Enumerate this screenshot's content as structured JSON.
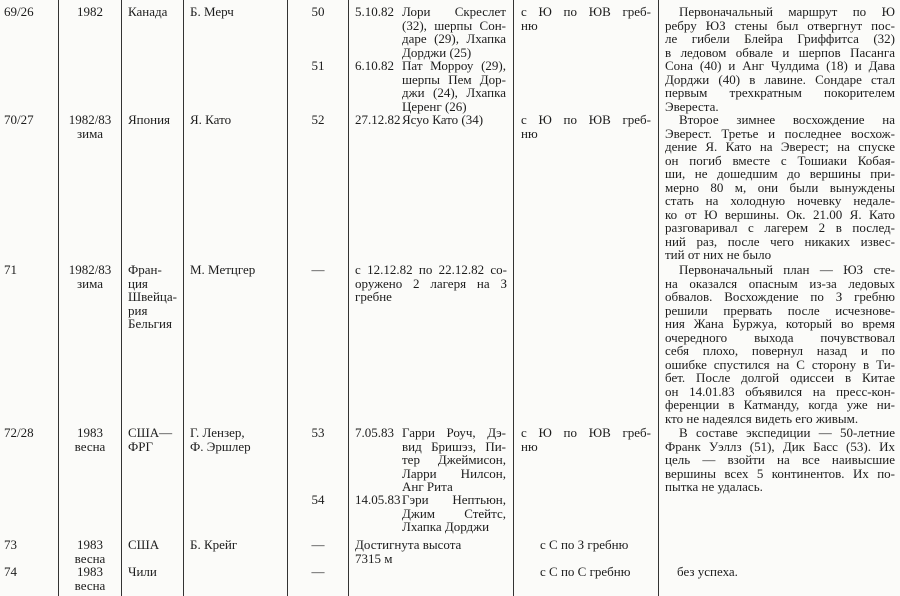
{
  "rows": [
    {
      "num": "69/26",
      "year": [
        "1982"
      ],
      "country": [
        "Канада"
      ],
      "leader": [
        "Б. Мерч"
      ],
      "ascents": [
        {
          "no": "50",
          "date": "5.10.82",
          "names": [
            "Лори Скреслет",
            "(32), шерпы Сон-",
            "даре (29), Лхапка",
            "Дорджи (25)"
          ]
        },
        {
          "no": "51",
          "date": "6.10.82",
          "names": [
            "Пат Морроу (29),",
            "шерпы Пем Дор-",
            "джи (24), Лхапка",
            "Церенг (26)"
          ]
        }
      ],
      "route": [
        "с Ю по ЮВ греб-",
        "ню"
      ],
      "notes": [
        "Первоначальный маршрут по Ю",
        "ребру ЮЗ стены был отвергнут пос-",
        "ле гибели Блейра Гриффитса (32)",
        "в ледовом обвале и шерпов Пасанга",
        "Сона (40) и Анг Чулдима (18) и Дава",
        "Дорджи (40) в лавине. Сондаре стал",
        "первым трехкратным покорителем",
        "Эвереста."
      ]
    },
    {
      "num": "70/27",
      "year": [
        "1982/83",
        "зима"
      ],
      "country": [
        "Япония"
      ],
      "leader": [
        "Я. Като"
      ],
      "ascents": [
        {
          "no": "52",
          "date": "27.12.82",
          "names": [
            "Ясуо Като (34)"
          ]
        }
      ],
      "route": [
        "с Ю по ЮВ греб-",
        "ню"
      ],
      "notes": [
        "Второе зимнее восхождение на",
        "Эверест. Третье и последнее восхож-",
        "дение Я. Като на Эверест; на спуске",
        "он погиб вместе с Тошиаки Кобая-",
        "ши, не дошедшим до вершины при-",
        "мерно 80 м, они были вынуждены",
        "стать на холодную ночевку недале-",
        "ко от Ю вершины. Ок. 21.00 Я. Като",
        "разговаривал с лагерем 2 в послед-",
        "ний раз, после чего никаких извес-",
        "тий от них не было"
      ]
    },
    {
      "num": "71",
      "year": [
        "1982/83",
        "зима"
      ],
      "country": [
        "Фран-",
        "ция",
        "Швейца-",
        "рия",
        "Бельгия"
      ],
      "leader": [
        "М. Метцгер"
      ],
      "no": "—",
      "text": [
        "с 12.12.82 по 22.12.82 со-",
        "оружено 2 лагеря на З",
        "гребне"
      ],
      "route": [],
      "notes": [
        "Первоначальный план — ЮЗ сте-",
        "на оказался опасным из-за ледовых",
        "обвалов. Восхождение по З гребню",
        "решили прервать после исчезнове-",
        "ния Жана Буржуа, который во время",
        "очередного выхода почувствовал",
        "себя плохо, повернул назад и по",
        "ошибке спустился на С сторону в Ти-",
        "бет. После долгой одиссеи в Китае",
        "он 14.01.83 объявился на пресс-кон-",
        "ференции в Катманду, когда уже ни-",
        "кто не надеялся видеть его живым."
      ]
    },
    {
      "num": "72/28",
      "year": [
        "1983",
        "весна"
      ],
      "country": [
        "США—",
        "ФРГ"
      ],
      "leader": [
        "Г. Лензер,",
        "Ф. Эршлер"
      ],
      "ascents": [
        {
          "no": "53",
          "date": "7.05.83",
          "names": [
            "Гарри Роуч, Дэ-",
            "вид Бришэз, Пи-",
            "тер Джеймисон,",
            "Ларри Нилсон,",
            "Анг Рита"
          ]
        },
        {
          "no": "54",
          "date": "14.05.83",
          "names": [
            "Гэри Нептьюн,",
            "Джим Стейтс,",
            "Лхапка Дорджи"
          ]
        }
      ],
      "route": [
        "с Ю по ЮВ греб-",
        "ню"
      ],
      "notes": [
        "В составе экспедиции — 50-летние",
        "Франк Уэллз (51), Дик Басс (53). Их",
        "цель — взойти на все наивысшие",
        "вершины всех 5 континентов. Их по-",
        "пытка не удалась."
      ]
    },
    {
      "num": "73",
      "year": [
        "1983",
        "весна"
      ],
      "country": [
        "США"
      ],
      "leader": [
        "Б. Крейг"
      ],
      "no": "—",
      "text": [
        "Достигнута высота",
        "7315 м"
      ],
      "route": [
        "с С по З гребню"
      ],
      "notes": []
    },
    {
      "num": "74",
      "year": [
        "1983",
        "весна"
      ],
      "country": [
        "Чили"
      ],
      "leader": [],
      "no": "—",
      "text": [],
      "route": [
        "с С по С гребню"
      ],
      "notes": [
        "без успеха."
      ]
    }
  ]
}
